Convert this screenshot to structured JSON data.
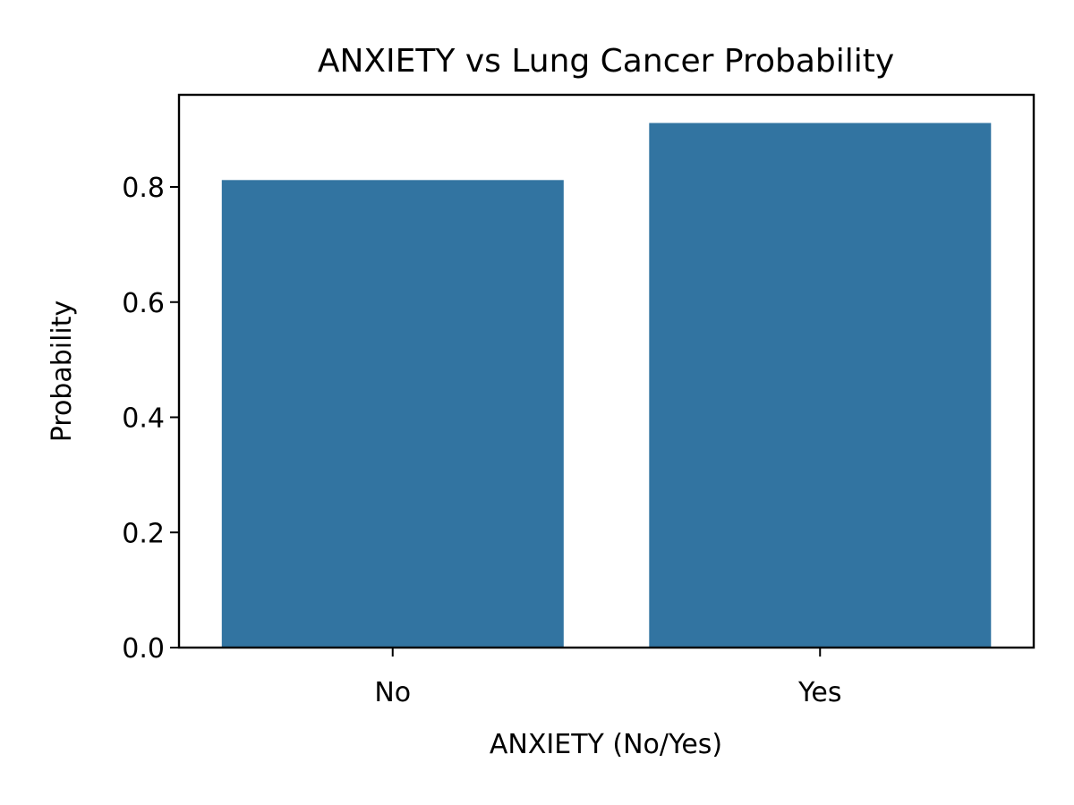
{
  "chart_data": {
    "type": "bar",
    "title": "ANXIETY vs Lung Cancer Probability",
    "xlabel": "ANXIETY (No/Yes)",
    "ylabel": "Probability",
    "categories": [
      "No",
      "Yes"
    ],
    "values": [
      0.812,
      0.911
    ],
    "ylim": [
      0,
      0.96
    ],
    "yticks": [
      "0.0",
      "0.2",
      "0.4",
      "0.6",
      "0.8"
    ],
    "bar_color": "#3274a1",
    "grid": false
  }
}
